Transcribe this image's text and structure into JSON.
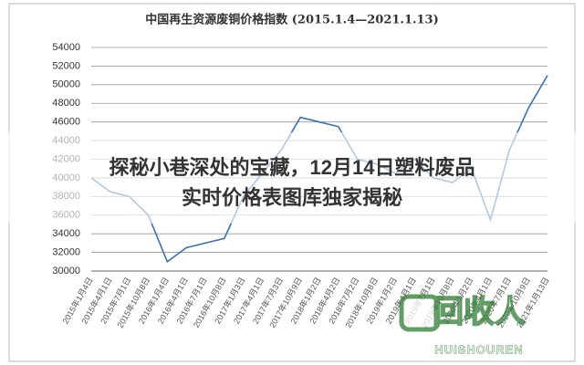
{
  "chart_data": {
    "type": "line",
    "title": "中国再生资源废铜价格指数 (2015.1.4—2021.1.13)",
    "categories": [
      "2015年1月4日",
      "2015年4月1日",
      "2015年7月1日",
      "2015年10月8日",
      "2016年1月4日",
      "2016年4月1日",
      "2016年7月1日",
      "2016年10月8日",
      "2017年1月3日",
      "2017年4月1日",
      "2017年7月3日",
      "2017年10月9日",
      "2018年1月2日",
      "2018年4月2日",
      "2018年7月2日",
      "2018年10月8日",
      "2019年1月2日",
      "2019年4月1日",
      "2019年7月1日",
      "2019年10月8日",
      "2020年1月2日",
      "2020年4月1日",
      "2020年7月1日",
      "2020年10月9日",
      "2021年1月13日"
    ],
    "series": [
      {
        "name": "废铜价格指数",
        "color": "#3a6fb0",
        "values": [
          40000,
          38500,
          38000,
          36000,
          31000,
          32500,
          33000,
          33500,
          38000,
          40500,
          43000,
          46500,
          46000,
          45500,
          42000,
          41500,
          40500,
          42000,
          40000,
          39500,
          41000,
          35500,
          43000,
          47500,
          51000
        ]
      }
    ],
    "ylim": [
      30000,
      54000
    ],
    "yticks": [
      30000,
      32000,
      34000,
      36000,
      38000,
      40000,
      42000,
      44000,
      46000,
      48000,
      50000,
      52000,
      54000
    ],
    "grid": true
  },
  "overlay": {
    "lines": [
      "探秘小巷深处的宝藏，12月14日塑料废品",
      "实时价格表图库独家揭秘"
    ]
  },
  "watermark": {
    "logo": "回收人",
    "subtitle": "HUISHOUREN"
  }
}
